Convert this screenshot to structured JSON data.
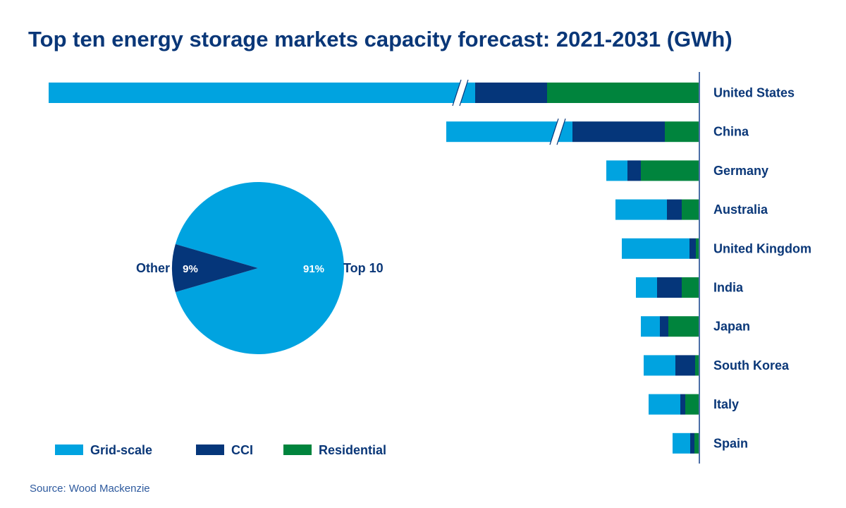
{
  "title": "Top ten energy storage markets capacity forecast: 2021-2031  (GWh)",
  "source": "Source: Wood Mackenzie",
  "colors": {
    "Grid-scale": "#00a3e0",
    "CCI": "#05367a",
    "Residential": "#00843d",
    "text": "#0a3778"
  },
  "chart_data": [
    {
      "type": "bar",
      "orientation": "horizontal-stacked",
      "axis_side": "right",
      "axis_values_shown": false,
      "broken_bars": [
        "United States",
        "China"
      ],
      "categories": [
        "United States",
        "China",
        "Germany",
        "Australia",
        "United Kingdom",
        "India",
        "Japan",
        "South Korea",
        "Italy",
        "Spain"
      ],
      "series": [
        {
          "name": "Grid-scale",
          "values": [
            605,
            179,
            30,
            73,
            96,
            30,
            27,
            45,
            45,
            25
          ]
        },
        {
          "name": "CCI",
          "values": [
            102,
            131,
            19,
            21,
            9,
            35,
            12,
            28,
            7,
            6
          ]
        },
        {
          "name": "Residential",
          "values": [
            216,
            49,
            83,
            25,
            5,
            25,
            44,
            6,
            20,
            7
          ]
        }
      ],
      "legend": {
        "placement": "bottom-left",
        "entries": [
          "Grid-scale",
          "CCI",
          "Residential"
        ]
      }
    },
    {
      "type": "pie",
      "slices": [
        {
          "label": "Top 10",
          "value": 91,
          "data_label": "91%"
        },
        {
          "label": "Other",
          "value": 9,
          "data_label": "9%"
        }
      ]
    }
  ]
}
